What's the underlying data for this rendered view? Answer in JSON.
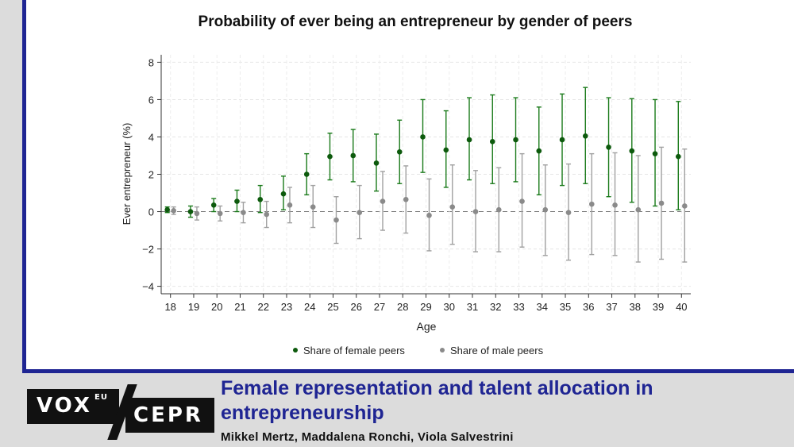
{
  "chart_data": {
    "type": "scatter",
    "title": "Probability of ever being an entrepreneur by gender of peers",
    "xlabel": "Age",
    "ylabel": "Ever entrepreneur (%)",
    "x": [
      18,
      19,
      20,
      21,
      22,
      23,
      24,
      25,
      26,
      27,
      28,
      29,
      30,
      31,
      32,
      33,
      34,
      35,
      36,
      37,
      38,
      39,
      40
    ],
    "xlim": [
      17.6,
      40.4
    ],
    "ylim": [
      -4.4,
      8.4
    ],
    "yticks": [
      -4,
      -2,
      0,
      2,
      4,
      6,
      8
    ],
    "ytick_labels": [
      "−4",
      "−2",
      "0",
      "2",
      "4",
      "6",
      "8"
    ],
    "grid": true,
    "reference_line_y": 0,
    "legend_position": "bottom",
    "series": [
      {
        "name": "Share of female peers",
        "color": "#1a7a1a",
        "point_color": "#0d5a0d",
        "values": [
          0.1,
          0.0,
          0.35,
          0.55,
          0.65,
          0.95,
          2.0,
          2.95,
          3.0,
          2.6,
          3.2,
          4.0,
          3.3,
          3.85,
          3.75,
          3.85,
          3.25,
          3.85,
          4.05,
          3.45,
          3.25,
          3.1,
          2.95
        ],
        "lower": [
          -0.05,
          -0.3,
          0.0,
          0.0,
          -0.05,
          0.1,
          0.9,
          1.7,
          1.6,
          1.1,
          1.5,
          2.1,
          1.3,
          1.7,
          1.5,
          1.6,
          0.9,
          1.4,
          1.5,
          0.8,
          0.5,
          0.3,
          0.1
        ],
        "upper": [
          0.25,
          0.3,
          0.7,
          1.15,
          1.4,
          1.9,
          3.1,
          4.2,
          4.4,
          4.15,
          4.9,
          6.0,
          5.4,
          6.1,
          6.25,
          6.1,
          5.6,
          6.3,
          6.65,
          6.1,
          6.05,
          6.0,
          5.9
        ]
      },
      {
        "name": "Share of male peers",
        "color": "#a0a0a0",
        "point_color": "#8a8a8a",
        "values": [
          0.05,
          -0.1,
          -0.1,
          -0.05,
          -0.15,
          0.35,
          0.25,
          -0.45,
          -0.05,
          0.55,
          0.65,
          -0.2,
          0.25,
          0.0,
          0.1,
          0.55,
          0.1,
          -0.05,
          0.4,
          0.35,
          0.1,
          0.45,
          0.3
        ],
        "lower": [
          -0.15,
          -0.45,
          -0.5,
          -0.6,
          -0.85,
          -0.6,
          -0.85,
          -1.7,
          -1.45,
          -1.0,
          -1.15,
          -2.1,
          -1.75,
          -2.15,
          -2.15,
          -1.9,
          -2.35,
          -2.6,
          -2.3,
          -2.35,
          -2.7,
          -2.55,
          -2.7
        ],
        "upper": [
          0.25,
          0.25,
          0.3,
          0.5,
          0.55,
          1.3,
          1.4,
          0.8,
          1.4,
          2.15,
          2.45,
          1.75,
          2.5,
          2.2,
          2.35,
          3.1,
          2.5,
          2.55,
          3.1,
          3.15,
          3.0,
          3.45,
          3.35
        ]
      }
    ]
  },
  "footer": {
    "vox_label": "VOX",
    "eu_label": "EU",
    "cepr_label": "CEPR",
    "headline": "Female representation and talent allocation in entrepreneurship",
    "authors": "Mikkel Mertz, Maddalena Ronchi, Viola Salvestrini"
  }
}
